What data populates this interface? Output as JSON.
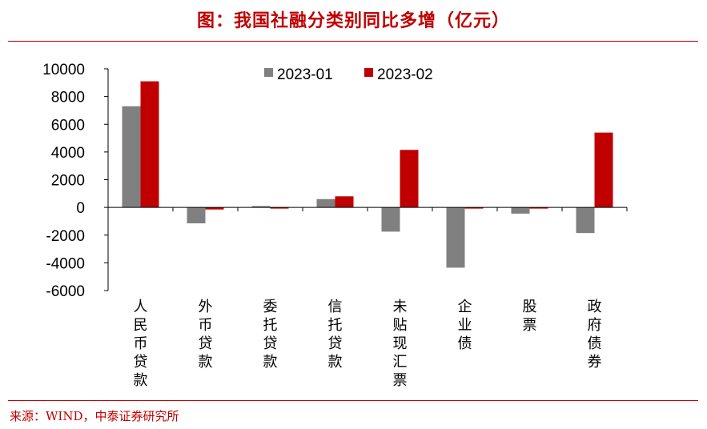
{
  "title": "图：我国社融分类别同比多增（亿元）",
  "source": "来源：WIND，中泰证券研究所",
  "colors": {
    "accent": "#c00000",
    "series1": "#808080",
    "series2": "#c00000"
  },
  "chart_data": {
    "type": "bar",
    "title": "图：我国社融分类别同比多增（亿元）",
    "xlabel": "",
    "ylabel": "",
    "ylim": [
      -6000,
      10000
    ],
    "yticks": [
      "10000",
      "8000",
      "6000",
      "4000",
      "2000",
      "0",
      "-2000",
      "-4000",
      "-6000"
    ],
    "categories": [
      "人民币贷款",
      "外币贷款",
      "委托贷款",
      "信托贷款",
      "未贴现汇票",
      "企业债",
      "股票",
      "政府债券"
    ],
    "series": [
      {
        "name": "2023-01",
        "color": "#808080",
        "values": [
          7300,
          -1150,
          100,
          600,
          -1750,
          -4350,
          -450,
          -1850
        ]
      },
      {
        "name": "2023-02",
        "color": "#c00000",
        "values": [
          9100,
          -150,
          0,
          800,
          4150,
          0,
          0,
          5400
        ]
      }
    ],
    "legend": "top-center",
    "grid": false
  }
}
